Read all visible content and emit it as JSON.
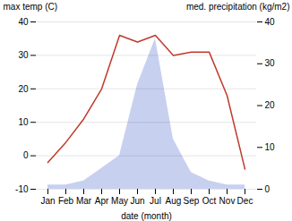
{
  "chart_data": {
    "type": "line",
    "xlabel": "date (month)",
    "ylabel": "max temp (C)",
    "y2label": "med. precipitation (kg/m2)",
    "categories": [
      "Jan",
      "Feb",
      "Mar",
      "Apr",
      "May",
      "Jun",
      "Jul",
      "Aug",
      "Sep",
      "Oct",
      "Nov",
      "Dec"
    ],
    "series": [
      {
        "type": "area",
        "axis": "y2",
        "color": "#c8d0f0",
        "values": [
          1,
          1,
          2,
          5,
          8,
          25,
          36,
          12,
          4,
          2,
          1,
          1
        ]
      },
      {
        "type": "line",
        "color": "#c0392b",
        "values": [
          -2,
          4,
          11,
          20,
          36,
          34,
          36,
          30,
          31,
          31,
          18,
          -4
        ]
      }
    ],
    "ylim": [
      -10,
      40
    ],
    "yticks": [
      -10,
      0,
      10,
      20,
      30,
      40
    ],
    "y2lim": [
      0,
      40
    ],
    "y2ticks": [
      0,
      10,
      20,
      30,
      40
    ],
    "grid": true
  }
}
